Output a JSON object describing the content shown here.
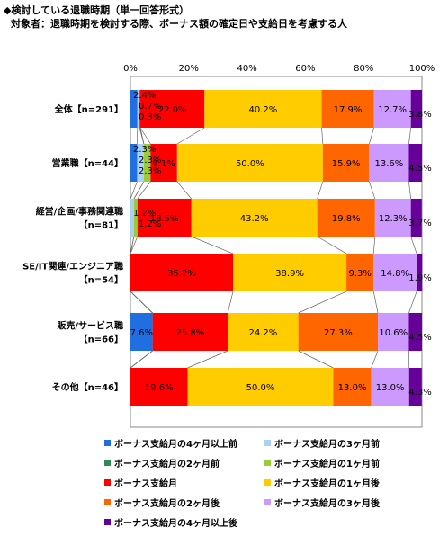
{
  "title": "◆検討している退職時期（単一回答形式）",
  "subtitle": "対象者：退職時期を検討する際、ボーナス額の確定日や支給日を考慮する人",
  "colors": [
    "#1f6fe0",
    "#a9d0f5",
    "#2e8b57",
    "#9acd32",
    "#ff0000",
    "#ffcc00",
    "#ff6600",
    "#cc99ff",
    "#660099"
  ],
  "chart_data": {
    "type": "bar",
    "orientation": "horizontal",
    "stacked": true,
    "xlim": [
      0,
      100
    ],
    "x_ticks": [
      "0%",
      "20%",
      "40%",
      "60%",
      "80%",
      "100%"
    ],
    "grid": false,
    "legend_position": "bottom",
    "categories": [
      [
        "全体【n=291】"
      ],
      [
        "営業職【n=44】"
      ],
      [
        "経営/企画/事務関連職",
        "【n=81】"
      ],
      [
        "SE/IT関連/エンジニア職",
        "【n=54】"
      ],
      [
        "販売/サービス職",
        "【n=66】"
      ],
      [
        "その他【n=46】"
      ]
    ],
    "series": [
      {
        "name": "ボーナス支給月の4ヶ月以上前",
        "values": [
          2.4,
          2.3,
          0,
          0,
          7.6,
          0
        ]
      },
      {
        "name": "ボーナス支給月の3ヶ月前",
        "values": [
          0.7,
          2.3,
          1.2,
          0,
          0,
          0
        ]
      },
      {
        "name": "ボーナス支給月の2ヶ月前",
        "values": [
          0.3,
          0,
          0,
          0,
          0,
          0
        ]
      },
      {
        "name": "ボーナス支給月の1ヶ月前",
        "values": [
          0,
          2.3,
          1.2,
          0,
          0,
          0
        ]
      },
      {
        "name": "ボーナス支給月",
        "values": [
          22.0,
          9.1,
          18.5,
          35.2,
          25.8,
          19.6
        ]
      },
      {
        "name": "ボーナス支給月の1ヶ月後",
        "values": [
          40.2,
          50.0,
          43.2,
          38.9,
          24.2,
          50.0
        ]
      },
      {
        "name": "ボーナス支給月の2ヶ月後",
        "values": [
          17.9,
          15.9,
          19.8,
          9.3,
          27.3,
          13.0
        ]
      },
      {
        "name": "ボーナス支給月の3ヶ月後",
        "values": [
          12.7,
          13.6,
          12.3,
          14.8,
          10.6,
          13.0
        ]
      },
      {
        "name": "ボーナス支給月の4ヶ月以上後",
        "values": [
          3.8,
          4.5,
          3.7,
          1.9,
          4.5,
          4.3
        ]
      }
    ],
    "data_labels": [
      [
        "2.4%",
        "0.7%",
        "0.3%",
        "",
        "22.0%",
        "40.2%",
        "17.9%",
        "12.7%",
        "3.8%"
      ],
      [
        "2.3%",
        "2.3%",
        "",
        "2.3%",
        "9.1%",
        "50.0%",
        "15.9%",
        "13.6%",
        "4.5%"
      ],
      [
        "",
        "1.2%",
        "",
        "1.2%",
        "18.5%",
        "43.2%",
        "19.8%",
        "12.3%",
        "3.7%"
      ],
      [
        "",
        "",
        "",
        "",
        "35.2%",
        "38.9%",
        "9.3%",
        "14.8%",
        "1.9%"
      ],
      [
        "7.6%",
        "",
        "",
        "",
        "25.8%",
        "24.2%",
        "27.3%",
        "10.6%",
        "4.5%"
      ],
      [
        "",
        "",
        "",
        "",
        "19.6%",
        "50.0%",
        "13.0%",
        "13.0%",
        "4.3%"
      ]
    ]
  }
}
